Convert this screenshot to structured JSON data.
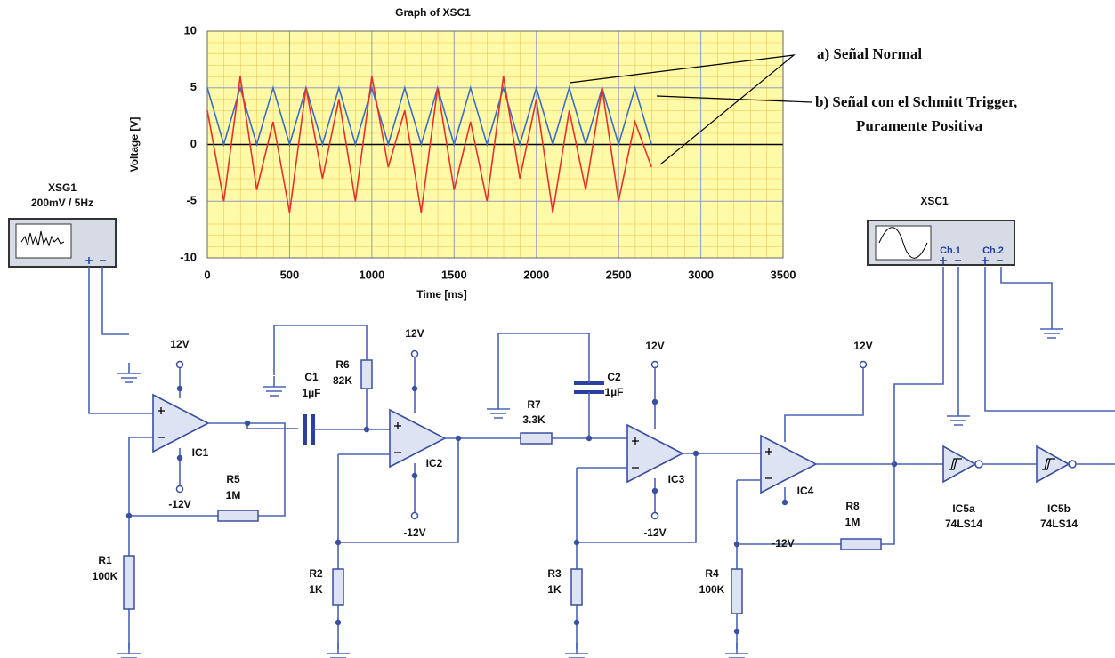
{
  "chart_data": {
    "type": "line",
    "title": "Graph of XSC1",
    "x_label": "Time [ms]",
    "y_label": "Voltage [V]",
    "x": [
      0,
      100,
      200,
      300,
      400,
      500,
      600,
      700,
      800,
      900,
      1000,
      1100,
      1200,
      1300,
      1400,
      1500,
      1600,
      1700,
      1800,
      1900,
      2000,
      2100,
      2200,
      2300,
      2400,
      2500,
      2600,
      2700
    ],
    "series": [
      {
        "color": "#3a6fc4",
        "values": [
          5,
          0,
          5,
          0,
          5,
          0,
          5,
          0,
          5,
          0,
          5,
          0,
          5,
          0,
          5,
          0,
          5,
          0,
          5,
          0,
          5,
          0,
          5,
          0,
          5,
          0,
          5,
          0
        ]
      },
      {
        "color": "#e8302a",
        "values": [
          3,
          -5,
          6,
          -4,
          2,
          -6,
          5,
          -3,
          4,
          -5,
          6,
          -2,
          3,
          -6,
          5,
          -4,
          2,
          -5,
          6,
          -3,
          4,
          -6,
          3,
          -4,
          5,
          -5,
          2,
          -2
        ]
      }
    ],
    "xlim": [
      0,
      3500
    ],
    "ylim": [
      -10,
      10
    ],
    "xticks": [
      0,
      500,
      1000,
      1500,
      2000,
      2500,
      3000,
      3500
    ],
    "yticks": [
      -10,
      -5,
      0,
      5,
      10
    ],
    "grid": true,
    "annotations": [
      "a) Señal Normal",
      "b) Señal con el Schmitt Trigger,",
      "Puramente Positiva"
    ]
  },
  "instruments": {
    "generator": {
      "name": "XSG1",
      "setting": "200mV / 5Hz"
    },
    "scope": {
      "name": "XSC1",
      "ch1": "Ch.1",
      "ch2": "Ch.2"
    }
  },
  "components": {
    "opamps": [
      "IC1",
      "IC2",
      "IC3",
      "IC4"
    ],
    "inverters": [
      {
        "ref": "IC5a",
        "part": "74LS14"
      },
      {
        "ref": "IC5b",
        "part": "74LS14"
      }
    ],
    "parts": [
      {
        "ref": "R1",
        "value": "100K"
      },
      {
        "ref": "R2",
        "value": "1K"
      },
      {
        "ref": "R3",
        "value": "1K"
      },
      {
        "ref": "R4",
        "value": "100K"
      },
      {
        "ref": "R5",
        "value": "1M"
      },
      {
        "ref": "R6",
        "value": "82K"
      },
      {
        "ref": "R7",
        "value": "3.3K"
      },
      {
        "ref": "R8",
        "value": "1M"
      },
      {
        "ref": "C1",
        "value": "1µF"
      },
      {
        "ref": "C2",
        "value": "1µF"
      }
    ],
    "supplies": [
      "12V",
      "-12V",
      "12V",
      "-12V",
      "12V",
      "-12V",
      "12V",
      "-12V"
    ]
  }
}
